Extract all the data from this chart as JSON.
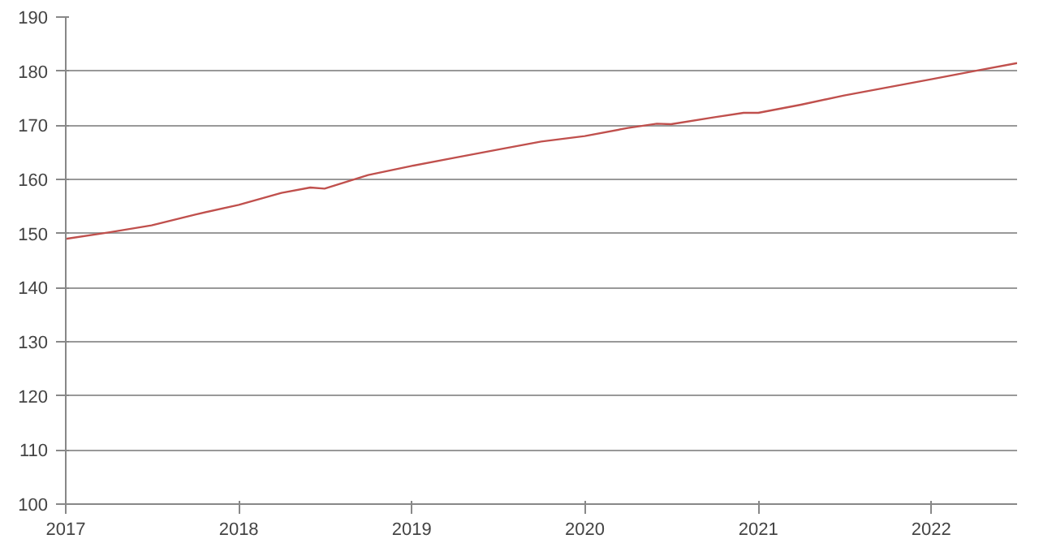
{
  "chart_data": {
    "type": "line",
    "x": [
      "2017-01",
      "2017-04",
      "2017-07",
      "2017-10",
      "2018-01",
      "2018-04",
      "2018-06",
      "2018-07",
      "2018-10",
      "2019-01",
      "2019-04",
      "2019-07",
      "2019-10",
      "2020-01",
      "2020-04",
      "2020-06",
      "2020-07",
      "2020-10",
      "2020-12",
      "2021-01",
      "2021-04",
      "2021-07",
      "2021-10",
      "2022-01",
      "2022-04",
      "2022-07"
    ],
    "series": [
      {
        "color": "#c0504d",
        "values": [
          149,
          150.2,
          151.5,
          153.5,
          155.3,
          157.5,
          158.5,
          158.3,
          160.8,
          162.5,
          164,
          165.5,
          167,
          168,
          169.5,
          170.3,
          170.2,
          171.5,
          172.3,
          172.3,
          173.8,
          175.5,
          177,
          178.5,
          180,
          181.5
        ]
      }
    ],
    "xlim": [
      "2017-01",
      "2022-07"
    ],
    "xticks": [
      "2017",
      "2018",
      "2019",
      "2020",
      "2021",
      "2022"
    ],
    "ylim": [
      100,
      190
    ],
    "yticks": [
      100,
      110,
      120,
      130,
      140,
      150,
      160,
      170,
      180,
      190
    ],
    "grid": "y",
    "marker": "none",
    "line_style": "solid"
  }
}
